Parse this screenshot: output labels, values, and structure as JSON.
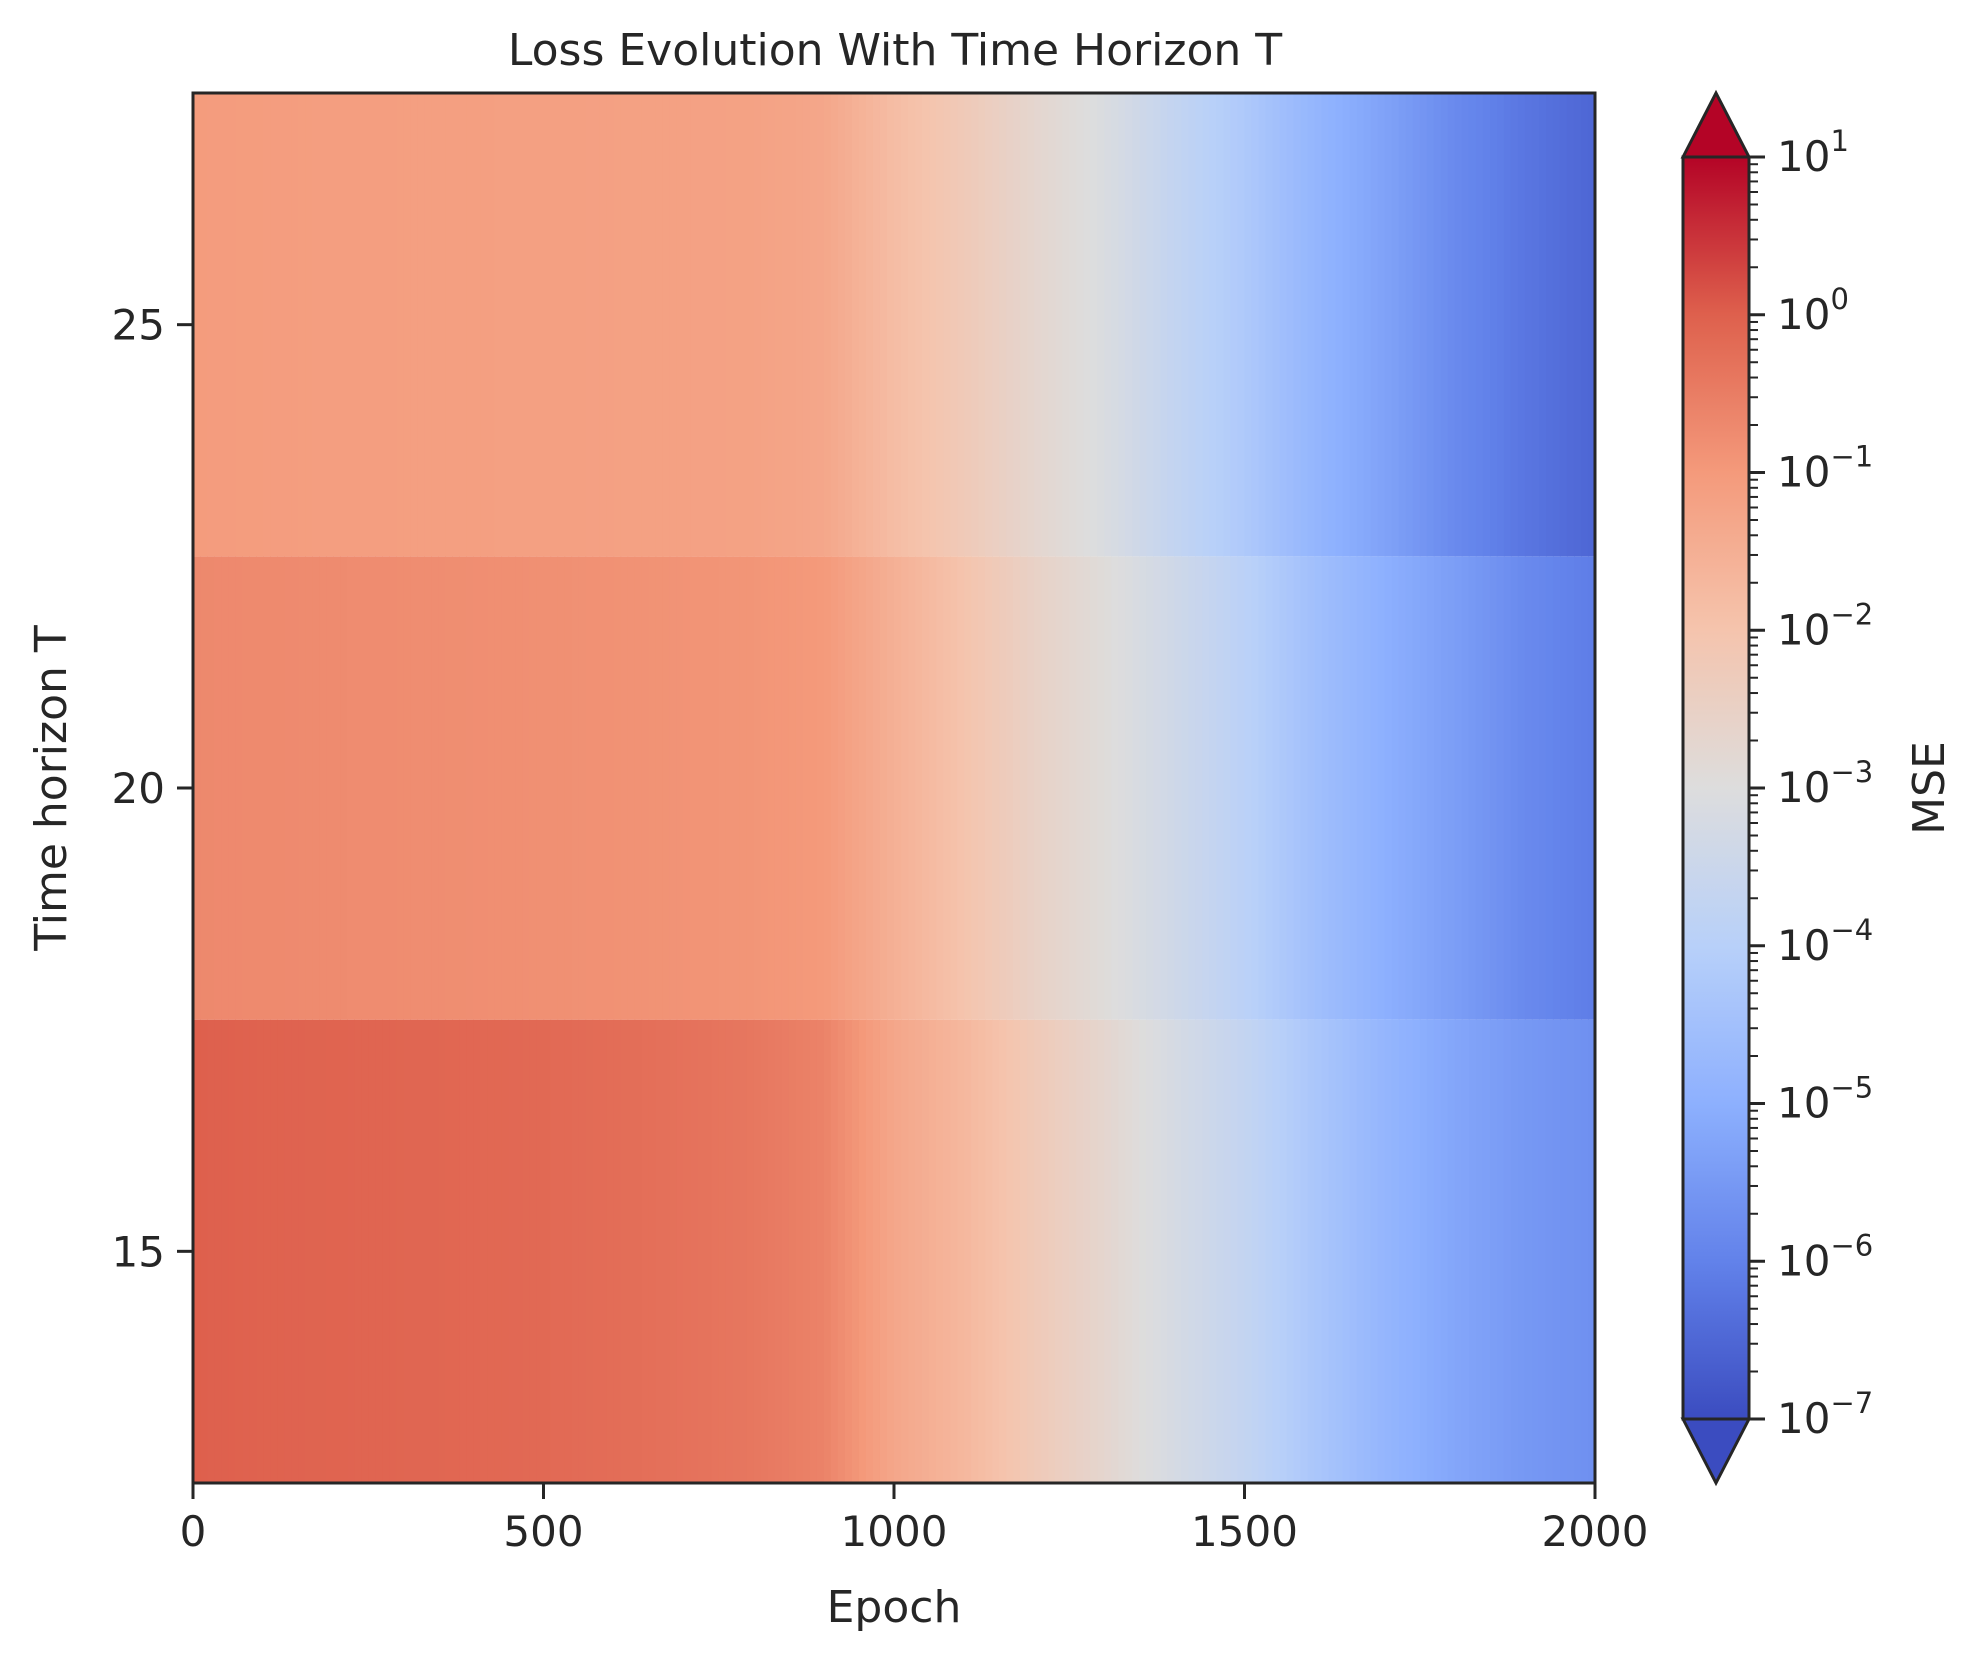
{
  "chart_data": {
    "type": "heatmap",
    "title": "Loss Evolution With Time Horizon T",
    "xlabel": "Epoch",
    "ylabel": "Time horizon T",
    "xlim": [
      0,
      2000
    ],
    "ylim": [
      12.5,
      27.5
    ],
    "x_ticks": [
      "0",
      "500",
      "1000",
      "1500",
      "2000"
    ],
    "y_ticks": [
      "15",
      "20",
      "25"
    ],
    "colormap": "coolwarm",
    "color_scale": "log",
    "colorbar": {
      "label": "MSE",
      "min": 1e-07,
      "max": 10,
      "extend": "both",
      "ticks": [
        {
          "base": "10",
          "exp": "1"
        },
        {
          "base": "10",
          "exp": "0"
        },
        {
          "base": "10",
          "exp": "−1"
        },
        {
          "base": "10",
          "exp": "−2"
        },
        {
          "base": "10",
          "exp": "−3"
        },
        {
          "base": "10",
          "exp": "−4"
        },
        {
          "base": "10",
          "exp": "−5"
        },
        {
          "base": "10",
          "exp": "−6"
        },
        {
          "base": "10",
          "exp": "−7"
        }
      ]
    },
    "epochs": [
      0,
      100,
      200,
      300,
      400,
      500,
      600,
      700,
      800,
      900,
      1000,
      1100,
      1200,
      1300,
      1400,
      1500,
      1600,
      1700,
      1800,
      1900,
      2000
    ],
    "rows": [
      {
        "T": 15,
        "mse": [
          1.0,
          0.9,
          0.85,
          0.8,
          0.75,
          0.7,
          0.6,
          0.5,
          0.4,
          0.25,
          0.05,
          0.02,
          0.006,
          0.002,
          0.0006,
          0.0002,
          5e-05,
          1.5e-05,
          6e-06,
          3e-06,
          2e-06
        ]
      },
      {
        "T": 20,
        "mse": [
          0.2,
          0.19,
          0.18,
          0.17,
          0.16,
          0.15,
          0.14,
          0.13,
          0.12,
          0.1,
          0.03,
          0.01,
          0.003,
          0.0012,
          0.0004,
          0.00012,
          3e-05,
          1e-05,
          4e-06,
          1.5e-06,
          8e-07
        ]
      },
      {
        "T": 25,
        "mse": [
          0.09,
          0.085,
          0.08,
          0.078,
          0.075,
          0.072,
          0.07,
          0.068,
          0.065,
          0.05,
          0.015,
          0.006,
          0.002,
          0.0008,
          0.0002,
          6e-05,
          1.5e-05,
          5e-06,
          1.5e-06,
          6e-07,
          3e-07
        ]
      }
    ]
  }
}
